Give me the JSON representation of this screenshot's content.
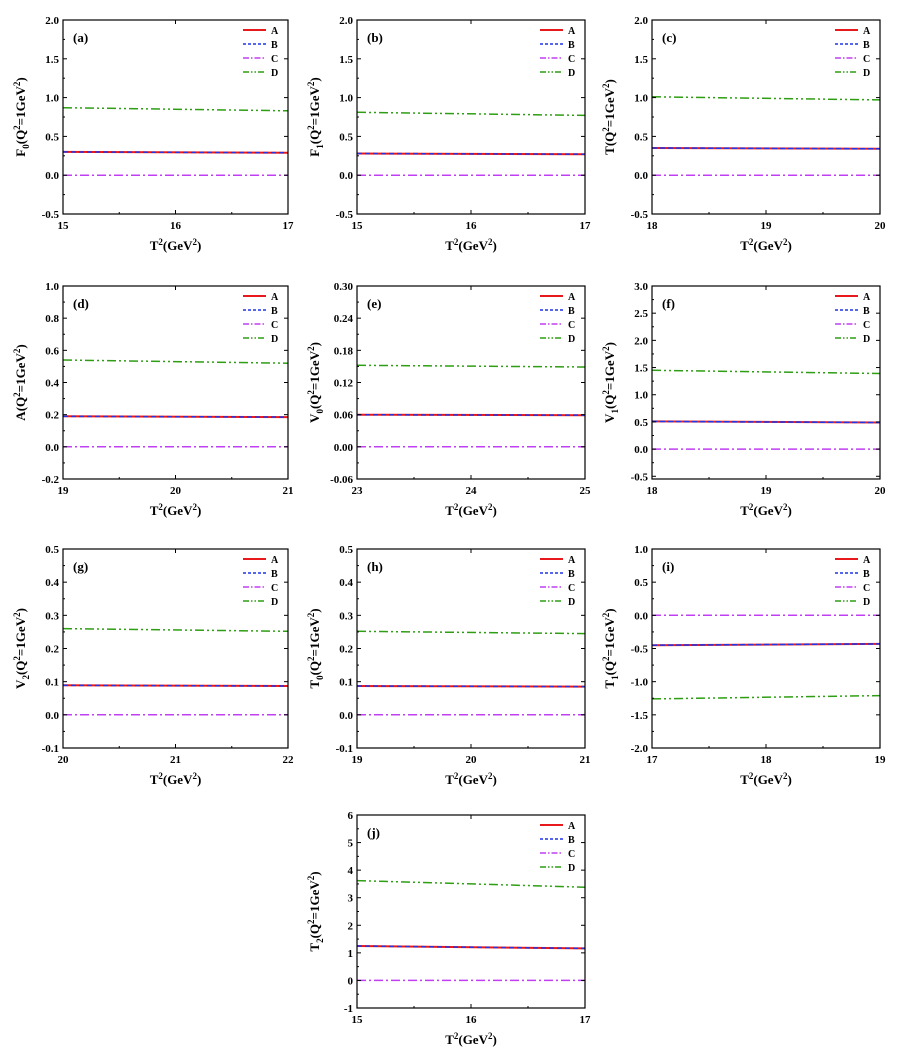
{
  "colors": {
    "A": "#e8191c",
    "B": "#1e35e8",
    "C": "#c13ff2",
    "D": "#2f9e14"
  },
  "legend_labels": [
    "A",
    "B",
    "C",
    "D"
  ],
  "chart_data": [
    {
      "type": "line",
      "panel": "(a)",
      "ylabel": "F_0(Q^2=1GeV^2)",
      "ylabel_base": "F",
      "ylabel_sub": "0",
      "xlabel": "T^2(GeV^2)",
      "xlim": [
        15,
        17
      ],
      "ylim": [
        -0.5,
        2.0
      ],
      "xticks": [
        15,
        16,
        17
      ],
      "xtick_labels": [
        "15",
        "16",
        "17"
      ],
      "yticks": [
        -0.5,
        0.0,
        0.5,
        1.0,
        1.5,
        2.0
      ],
      "ytick_labels": [
        "-0.5",
        "0.0",
        "0.5",
        "1.0",
        "1.5",
        "2.0"
      ],
      "legend_position": "top-right",
      "series": [
        {
          "name": "A",
          "x": [
            15,
            17
          ],
          "y": [
            0.3,
            0.29
          ]
        },
        {
          "name": "B",
          "x": [
            15,
            17
          ],
          "y": [
            0.3,
            0.29
          ]
        },
        {
          "name": "C",
          "x": [
            15,
            17
          ],
          "y": [
            0.0,
            0.0
          ]
        },
        {
          "name": "D",
          "x": [
            15,
            17
          ],
          "y": [
            0.87,
            0.83
          ]
        }
      ]
    },
    {
      "type": "line",
      "panel": "(b)",
      "ylabel": "F_1(Q^2=1GeV^2)",
      "ylabel_base": "F",
      "ylabel_sub": "1",
      "xlabel": "T^2(GeV^2)",
      "xlim": [
        15,
        17
      ],
      "ylim": [
        -0.5,
        2.0
      ],
      "xticks": [
        15,
        16,
        17
      ],
      "xtick_labels": [
        "15",
        "16",
        "17"
      ],
      "yticks": [
        -0.5,
        0.0,
        0.5,
        1.0,
        1.5,
        2.0
      ],
      "ytick_labels": [
        "-0.5",
        "0.0",
        "0.5",
        "1.0",
        "1.5",
        "2.0"
      ],
      "legend_position": "top-right",
      "series": [
        {
          "name": "A",
          "x": [
            15,
            17
          ],
          "y": [
            0.28,
            0.27
          ]
        },
        {
          "name": "B",
          "x": [
            15,
            17
          ],
          "y": [
            0.28,
            0.27
          ]
        },
        {
          "name": "C",
          "x": [
            15,
            17
          ],
          "y": [
            0.0,
            0.0
          ]
        },
        {
          "name": "D",
          "x": [
            15,
            17
          ],
          "y": [
            0.81,
            0.77
          ]
        }
      ]
    },
    {
      "type": "line",
      "panel": "(c)",
      "ylabel": "T(Q^2=1GeV^2)",
      "ylabel_base": "T",
      "ylabel_sub": "",
      "xlabel": "T^2(GeV^2)",
      "xlim": [
        18,
        20
      ],
      "ylim": [
        -0.5,
        2.0
      ],
      "xticks": [
        18,
        19,
        20
      ],
      "xtick_labels": [
        "18",
        "19",
        "20"
      ],
      "yticks": [
        -0.5,
        0.0,
        0.5,
        1.0,
        1.5,
        2.0
      ],
      "ytick_labels": [
        "-0.5",
        "0.0",
        "0.5",
        "1.0",
        "1.5",
        "2.0"
      ],
      "legend_position": "top-right",
      "series": [
        {
          "name": "A",
          "x": [
            18,
            20
          ],
          "y": [
            0.35,
            0.34
          ]
        },
        {
          "name": "B",
          "x": [
            18,
            20
          ],
          "y": [
            0.35,
            0.34
          ]
        },
        {
          "name": "C",
          "x": [
            18,
            20
          ],
          "y": [
            0.0,
            0.0
          ]
        },
        {
          "name": "D",
          "x": [
            18,
            20
          ],
          "y": [
            1.01,
            0.97
          ]
        }
      ]
    },
    {
      "type": "line",
      "panel": "(d)",
      "ylabel": "A(Q^2=1GeV^2)",
      "ylabel_base": "A",
      "ylabel_sub": "",
      "xlabel": "T^2(GeV^2)",
      "xlim": [
        19,
        21
      ],
      "ylim": [
        -0.2,
        1.0
      ],
      "xticks": [
        19,
        20,
        21
      ],
      "xtick_labels": [
        "19",
        "20",
        "21"
      ],
      "yticks": [
        -0.2,
        0.0,
        0.2,
        0.4,
        0.6,
        0.8,
        1.0
      ],
      "ytick_labels": [
        "-0.2",
        "0.0",
        "0.2",
        "0.4",
        "0.6",
        "0.8",
        "1.0"
      ],
      "legend_position": "top-right",
      "series": [
        {
          "name": "A",
          "x": [
            19,
            21
          ],
          "y": [
            0.19,
            0.185
          ]
        },
        {
          "name": "B",
          "x": [
            19,
            21
          ],
          "y": [
            0.19,
            0.185
          ]
        },
        {
          "name": "C",
          "x": [
            19,
            21
          ],
          "y": [
            0.0,
            0.0
          ]
        },
        {
          "name": "D",
          "x": [
            19,
            21
          ],
          "y": [
            0.54,
            0.52
          ]
        }
      ]
    },
    {
      "type": "line",
      "panel": "(e)",
      "ylabel": "V_0(Q^2=1GeV^2)",
      "ylabel_base": "V",
      "ylabel_sub": "0",
      "xlabel": "T^2(GeV^2)",
      "xlim": [
        23,
        25
      ],
      "ylim": [
        -0.06,
        0.3
      ],
      "xticks": [
        23,
        24,
        25
      ],
      "xtick_labels": [
        "23",
        "24",
        "25"
      ],
      "yticks": [
        -0.06,
        0.0,
        0.06,
        0.12,
        0.18,
        0.24,
        0.3
      ],
      "ytick_labels": [
        "-0.06",
        "0.00",
        "0.06",
        "0.12",
        "0.18",
        "0.24",
        "0.30"
      ],
      "legend_position": "top-right",
      "series": [
        {
          "name": "A",
          "x": [
            23,
            25
          ],
          "y": [
            0.06,
            0.059
          ]
        },
        {
          "name": "B",
          "x": [
            23,
            25
          ],
          "y": [
            0.06,
            0.059
          ]
        },
        {
          "name": "C",
          "x": [
            23,
            25
          ],
          "y": [
            0.0,
            0.0
          ]
        },
        {
          "name": "D",
          "x": [
            23,
            25
          ],
          "y": [
            0.152,
            0.149
          ]
        }
      ]
    },
    {
      "type": "line",
      "panel": "(f)",
      "ylabel": "V_1(Q^2=1GeV^2)",
      "ylabel_base": "V",
      "ylabel_sub": "1",
      "xlabel": "T^2(GeV^2)",
      "xlim": [
        18,
        20
      ],
      "ylim": [
        -0.55,
        3.0
      ],
      "xticks": [
        18,
        19,
        20
      ],
      "xtick_labels": [
        "18",
        "19",
        "20"
      ],
      "yticks": [
        -0.5,
        0.0,
        0.5,
        1.0,
        1.5,
        2.0,
        2.5,
        3.0
      ],
      "ytick_labels": [
        "-0.5",
        "0.0",
        "0.5",
        "1.0",
        "1.5",
        "2.0",
        "2.5",
        "3.0"
      ],
      "legend_position": "top-right",
      "series": [
        {
          "name": "A",
          "x": [
            18,
            20
          ],
          "y": [
            0.51,
            0.49
          ]
        },
        {
          "name": "B",
          "x": [
            18,
            20
          ],
          "y": [
            0.51,
            0.49
          ]
        },
        {
          "name": "C",
          "x": [
            18,
            20
          ],
          "y": [
            0.0,
            0.0
          ]
        },
        {
          "name": "D",
          "x": [
            18,
            20
          ],
          "y": [
            1.45,
            1.39
          ]
        }
      ]
    },
    {
      "type": "line",
      "panel": "(g)",
      "ylabel": "V_2(Q^2=1GeV^2)",
      "ylabel_base": "V",
      "ylabel_sub": "2",
      "xlabel": "T^2(GeV^2)",
      "xlim": [
        20,
        22
      ],
      "ylim": [
        -0.1,
        0.5
      ],
      "xticks": [
        20,
        21,
        22
      ],
      "xtick_labels": [
        "20",
        "21",
        "22"
      ],
      "yticks": [
        -0.1,
        0.0,
        0.1,
        0.2,
        0.3,
        0.4,
        0.5
      ],
      "ytick_labels": [
        "-0.1",
        "0.0",
        "0.1",
        "0.2",
        "0.3",
        "0.4",
        "0.5"
      ],
      "legend_position": "top-right",
      "series": [
        {
          "name": "A",
          "x": [
            20,
            22
          ],
          "y": [
            0.089,
            0.087
          ]
        },
        {
          "name": "B",
          "x": [
            20,
            22
          ],
          "y": [
            0.089,
            0.087
          ]
        },
        {
          "name": "C",
          "x": [
            20,
            22
          ],
          "y": [
            0.0,
            0.0
          ]
        },
        {
          "name": "D",
          "x": [
            20,
            22
          ],
          "y": [
            0.26,
            0.252
          ]
        }
      ]
    },
    {
      "type": "line",
      "panel": "(h)",
      "ylabel": "T_0(Q^2=1GeV^2)",
      "ylabel_base": "T",
      "ylabel_sub": "0",
      "xlabel": "T^2(GeV^2)",
      "xlim": [
        19,
        21
      ],
      "ylim": [
        -0.1,
        0.5
      ],
      "xticks": [
        19,
        20,
        21
      ],
      "xtick_labels": [
        "19",
        "20",
        "21"
      ],
      "yticks": [
        -0.1,
        0.0,
        0.1,
        0.2,
        0.3,
        0.4,
        0.5
      ],
      "ytick_labels": [
        "-0.1",
        "0.0",
        "0.1",
        "0.2",
        "0.3",
        "0.4",
        "0.5"
      ],
      "legend_position": "top-right",
      "series": [
        {
          "name": "A",
          "x": [
            19,
            21
          ],
          "y": [
            0.087,
            0.085
          ]
        },
        {
          "name": "B",
          "x": [
            19,
            21
          ],
          "y": [
            0.087,
            0.085
          ]
        },
        {
          "name": "C",
          "x": [
            19,
            21
          ],
          "y": [
            0.0,
            0.0
          ]
        },
        {
          "name": "D",
          "x": [
            19,
            21
          ],
          "y": [
            0.252,
            0.245
          ]
        }
      ]
    },
    {
      "type": "line",
      "panel": "(i)",
      "ylabel": "T_1(Q^2=1GeV^2)",
      "ylabel_base": "T",
      "ylabel_sub": "1",
      "xlabel": "T^2(GeV^2)",
      "xlim": [
        17,
        19
      ],
      "ylim": [
        -2.0,
        1.0
      ],
      "xticks": [
        17,
        18,
        19
      ],
      "xtick_labels": [
        "17",
        "18",
        "19"
      ],
      "yticks": [
        -2.0,
        -1.5,
        -1.0,
        -0.5,
        0.0,
        0.5,
        1.0
      ],
      "ytick_labels": [
        "-2.0",
        "-1.5",
        "-1.0",
        "-0.5",
        "0.0",
        "0.5",
        "1.0"
      ],
      "legend_position": "top-right",
      "series": [
        {
          "name": "A",
          "x": [
            17,
            19
          ],
          "y": [
            -0.45,
            -0.43
          ]
        },
        {
          "name": "B",
          "x": [
            17,
            19
          ],
          "y": [
            -0.45,
            -0.43
          ]
        },
        {
          "name": "C",
          "x": [
            17,
            19
          ],
          "y": [
            0.0,
            0.0
          ]
        },
        {
          "name": "D",
          "x": [
            17,
            19
          ],
          "y": [
            -1.26,
            -1.21
          ]
        }
      ]
    },
    {
      "type": "line",
      "panel": "(j)",
      "ylabel": "T_2(Q^2=1GeV^2)",
      "ylabel_base": "T",
      "ylabel_sub": "2",
      "xlabel": "T^2(GeV^2)",
      "xlim": [
        15,
        17
      ],
      "ylim": [
        -1,
        6
      ],
      "xticks": [
        15,
        16,
        17
      ],
      "xtick_labels": [
        "15",
        "16",
        "17"
      ],
      "yticks": [
        -1,
        0,
        1,
        2,
        3,
        4,
        5,
        6
      ],
      "ytick_labels": [
        "-1",
        "0",
        "1",
        "2",
        "3",
        "4",
        "5",
        "6"
      ],
      "legend_position": "top-right",
      "series": [
        {
          "name": "A",
          "x": [
            15,
            17
          ],
          "y": [
            1.25,
            1.16
          ]
        },
        {
          "name": "B",
          "x": [
            15,
            17
          ],
          "y": [
            1.25,
            1.16
          ]
        },
        {
          "name": "C",
          "x": [
            15,
            17
          ],
          "y": [
            0.0,
            0.0
          ]
        },
        {
          "name": "D",
          "x": [
            15,
            17
          ],
          "y": [
            3.62,
            3.38
          ]
        }
      ]
    }
  ]
}
